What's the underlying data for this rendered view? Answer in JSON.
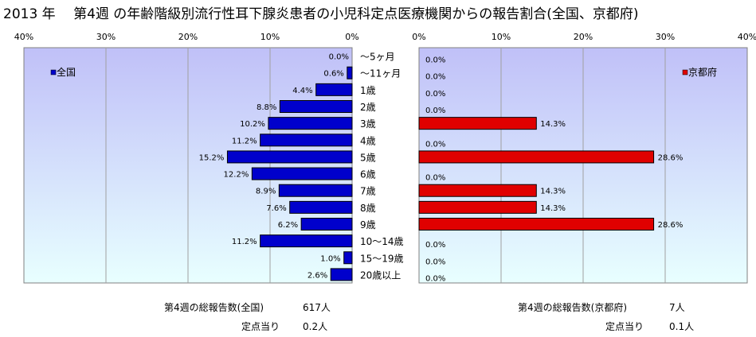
{
  "title": "2013 年　 第4週 の年齢階級別流行性耳下腺炎患者の小児科定点医療機関からの報告割合(全国、京都府)",
  "colors": {
    "national_bar": "#0000cc",
    "kyoto_bar": "#e00000",
    "plot_bg_top": "#c0c0f8",
    "plot_bg_bottom": "#e8ffff",
    "grid": "#a0a0a0"
  },
  "chart_data": [
    {
      "type": "bar",
      "orientation": "horizontal",
      "direction": "right-to-left",
      "xlim": [
        0,
        40
      ],
      "xticks": [
        "40%",
        "30%",
        "20%",
        "10%",
        "0%"
      ],
      "tick_values": [
        40,
        30,
        20,
        10,
        0
      ],
      "legend": "全国",
      "legend_position": "top-left",
      "series": [
        {
          "name": "全国",
          "values": [
            0.0,
            0.6,
            4.4,
            8.8,
            10.2,
            11.2,
            15.2,
            12.2,
            8.9,
            7.6,
            6.2,
            11.2,
            1.0,
            2.6
          ],
          "labels": [
            "0.0%",
            "0.6%",
            "4.4%",
            "8.8%",
            "10.2%",
            "11.2%",
            "15.2%",
            "12.2%",
            "8.9%",
            "7.6%",
            "6.2%",
            "11.2%",
            "1.0%",
            "2.6%"
          ]
        }
      ]
    },
    {
      "type": "bar",
      "orientation": "horizontal",
      "xlim": [
        0,
        40
      ],
      "xticks": [
        "0%",
        "10%",
        "20%",
        "30%",
        "40%"
      ],
      "tick_values": [
        0,
        10,
        20,
        30,
        40
      ],
      "legend": "京都府",
      "legend_position": "top-right",
      "series": [
        {
          "name": "京都府",
          "values": [
            0.0,
            0.0,
            0.0,
            0.0,
            14.3,
            0.0,
            28.6,
            0.0,
            14.3,
            14.3,
            28.6,
            0.0,
            0.0,
            0.0
          ],
          "labels": [
            "0.0%",
            "0.0%",
            "0.0%",
            "0.0%",
            "14.3%",
            "0.0%",
            "28.6%",
            "0.0%",
            "14.3%",
            "14.3%",
            "28.6%",
            "0.0%",
            "0.0%",
            "0.0%"
          ]
        }
      ]
    }
  ],
  "categories": [
    "～5ヶ月",
    "～11ヶ月",
    "1歳",
    "2歳",
    "3歳",
    "4歳",
    "5歳",
    "6歳",
    "7歳",
    "8歳",
    "9歳",
    "10～14歳",
    "15～19歳",
    "20歳以上"
  ],
  "footer": {
    "national_total_label": "第4週の総報告数(全国)",
    "national_total_value": "617人",
    "national_per_label": "定点当り",
    "national_per_value": "0.2人",
    "kyoto_total_label": "第4週の総報告数(京都府)",
    "kyoto_total_value": "7人",
    "kyoto_per_label": "定点当り",
    "kyoto_per_value": "0.1人"
  }
}
